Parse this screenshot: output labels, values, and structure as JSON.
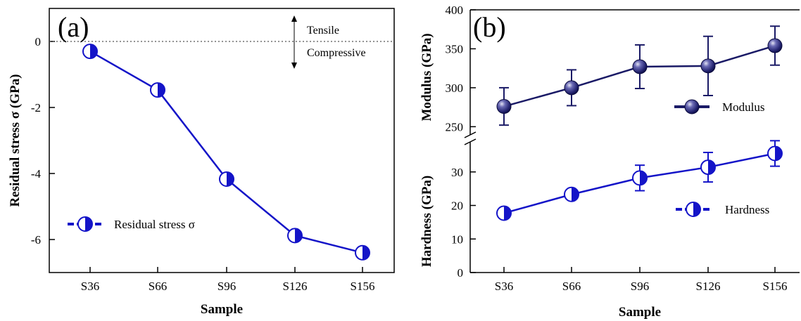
{
  "chart_data": [
    {
      "type": "line",
      "panel_label": "(a)",
      "categories": [
        "S36",
        "S66",
        "S96",
        "S126",
        "S156"
      ],
      "xlabel": "Sample",
      "ylabel": "Residual stress σ (GPa)",
      "ylim": [
        -7,
        1
      ],
      "yticks": [
        "0",
        "-2",
        "-4",
        "-6"
      ],
      "series": [
        {
          "name": "Residual stress σ",
          "values": [
            -0.3,
            -1.47,
            -4.17,
            -5.88,
            -6.4
          ]
        }
      ],
      "reference_line": {
        "value": 0,
        "style": "dotted"
      },
      "annotations": {
        "above": "Tensile",
        "below": "Compressive"
      },
      "legend": "bottom-left",
      "color": "#1414c8"
    },
    {
      "type": "line",
      "panel_label": "(b)",
      "categories": [
        "S36",
        "S66",
        "S96",
        "S126",
        "S156"
      ],
      "xlabel": "Sample",
      "broken_y_axis": true,
      "upper": {
        "ylabel": "Modulus (GPa)",
        "ylim": [
          235,
          400
        ],
        "yticks": [
          "250",
          "300",
          "350",
          "400"
        ],
        "series": [
          {
            "name": "Modulus",
            "values": [
              276,
              300,
              327,
              328,
              354
            ],
            "errors": [
              24,
              23,
              28,
              38,
              25
            ]
          }
        ],
        "legend": "right",
        "color": "#1a1a66"
      },
      "lower": {
        "ylabel": "Hardness (GPa)",
        "ylim": [
          0,
          40
        ],
        "yticks": [
          "0",
          "10",
          "20",
          "30"
        ],
        "series": [
          {
            "name": "Hardness",
            "values": [
              17.7,
              23.3,
              28.2,
              31.4,
              35.5
            ],
            "errors": [
              1.3,
              1.5,
              3.8,
              4.4,
              3.8
            ]
          }
        ],
        "legend": "right",
        "color": "#1414c8"
      }
    }
  ]
}
